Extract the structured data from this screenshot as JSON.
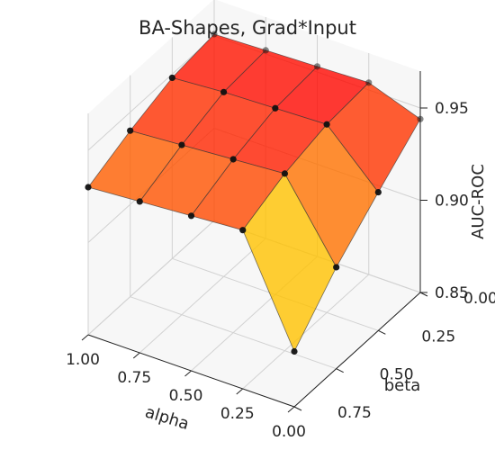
{
  "chart_data": {
    "type": "surface3d",
    "title": "BA-Shapes, Grad*Input",
    "xlabel": "alpha",
    "ylabel": "beta",
    "zlabel": "AUC-ROC",
    "x_ticks": [
      "1.00",
      "0.75",
      "0.50",
      "0.25",
      "0.00"
    ],
    "y_ticks": [
      "0.00",
      "0.25",
      "0.50",
      "0.75"
    ],
    "z_ticks": [
      "0.85",
      "0.90",
      "0.95"
    ],
    "xlim": [
      0,
      1
    ],
    "ylim": [
      0,
      0.75
    ],
    "zlim": [
      0.85,
      0.97
    ],
    "alpha": [
      1.0,
      0.75,
      0.5,
      0.25,
      0.0
    ],
    "beta": [
      0.0,
      0.25,
      0.5,
      0.75
    ],
    "auc": [
      [
        0.951,
        0.948,
        0.94,
        0.93
      ],
      [
        0.952,
        0.95,
        0.942,
        0.932
      ],
      [
        0.953,
        0.951,
        0.944,
        0.934
      ],
      [
        0.954,
        0.952,
        0.946,
        0.936
      ],
      [
        0.944,
        0.925,
        0.905,
        0.88
      ]
    ],
    "colormap": "autumn",
    "grid": true
  }
}
